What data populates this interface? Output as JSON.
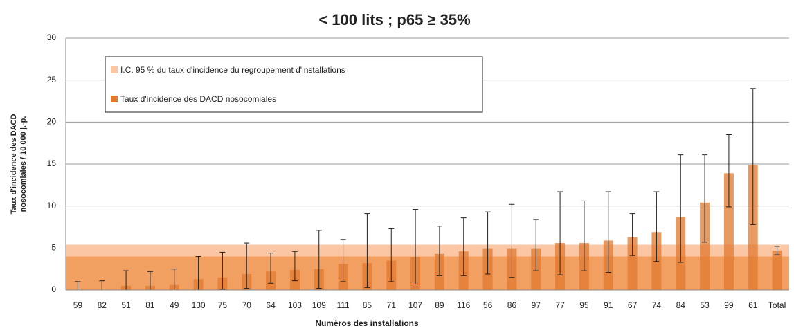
{
  "chart_data": {
    "type": "bar",
    "title": "< 100 lits ; p65 ≥ 35%",
    "ylabel": [
      "Taux d'incidence des DACD",
      "nosocomiales  / 10 000 j.-p."
    ],
    "xlabel": "Numéros des installations",
    "categories": [
      "59",
      "82",
      "51",
      "81",
      "49",
      "130",
      "75",
      "70",
      "64",
      "103",
      "109",
      "111",
      "85",
      "71",
      "107",
      "89",
      "116",
      "56",
      "86",
      "97",
      "77",
      "95",
      "91",
      "67",
      "74",
      "84",
      "53",
      "99",
      "61",
      "Total"
    ],
    "series": [
      {
        "name": "Taux d'incidence des DACD nosocomiales",
        "color": "#e0782f",
        "values": [
          0,
          0,
          0.5,
          0.5,
          0.6,
          1.3,
          1.5,
          1.9,
          2.2,
          2.4,
          2.5,
          3.1,
          3.2,
          3.5,
          3.9,
          4.3,
          4.6,
          4.9,
          4.9,
          4.9,
          5.6,
          5.6,
          5.9,
          6.3,
          6.9,
          8.7,
          10.4,
          13.9,
          14.9,
          4.7
        ],
        "ci_low": [
          0,
          0,
          0,
          0,
          0,
          0,
          0.1,
          0.2,
          0.8,
          1.1,
          0.2,
          1.0,
          0.3,
          1.0,
          0.7,
          1.7,
          1.7,
          1.9,
          1.5,
          2.3,
          1.8,
          2.3,
          2.1,
          4.1,
          3.4,
          3.3,
          5.7,
          9.9,
          7.8,
          4.2
        ],
        "ci_high": [
          1.0,
          1.1,
          2.3,
          2.2,
          2.5,
          4.0,
          4.5,
          5.6,
          4.4,
          4.6,
          7.1,
          6.0,
          9.1,
          7.3,
          9.6,
          7.6,
          8.6,
          9.3,
          10.2,
          8.4,
          11.7,
          10.6,
          11.7,
          9.1,
          11.7,
          16.1,
          16.1,
          18.5,
          24.0,
          5.2
        ]
      }
    ],
    "band": {
      "name": "I.C. 95 % du taux d'incidence du regroupement d'installations",
      "color": "#fbc6a4",
      "low": 4.0,
      "high": 5.4,
      "below_color": "#f2a062"
    },
    "ylim": [
      0,
      30
    ],
    "yticks": [
      0,
      5,
      10,
      15,
      20,
      25,
      30
    ],
    "grid": true
  }
}
